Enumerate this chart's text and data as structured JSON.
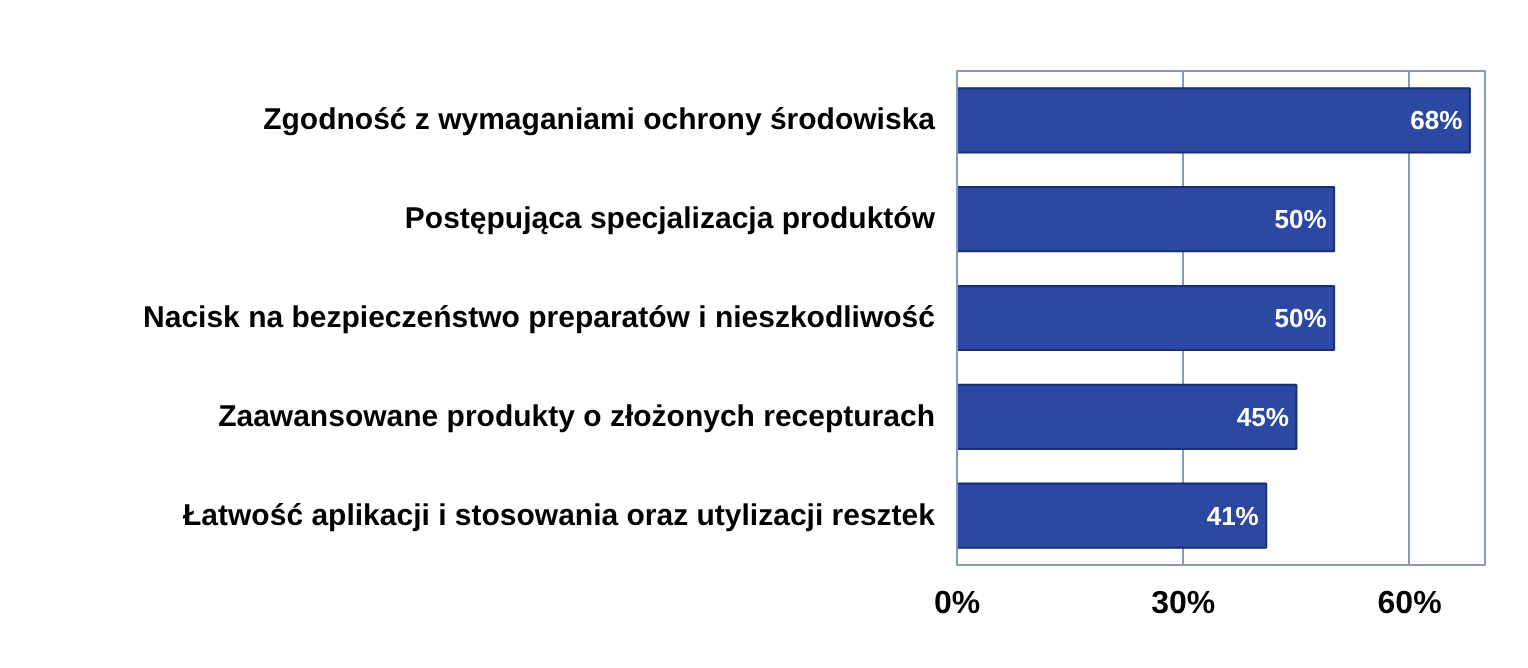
{
  "chart_data": {
    "type": "bar",
    "orientation": "horizontal",
    "categories": [
      "Zgodność z wymaganiami ochrony środowiska",
      "Postępująca specjalizacja produktów",
      "Nacisk na bezpieczeństwo preparatów i nieszkodliwość",
      "Zaawansowane produkty o złożonych recepturach",
      "Łatwość aplikacji i stosowania oraz utylizacji resztek"
    ],
    "values": [
      68,
      50,
      50,
      45,
      41
    ],
    "value_labels": [
      "68%",
      "50%",
      "50%",
      "45%",
      "41%"
    ],
    "color": "#2b48a3",
    "xlim": [
      0,
      70
    ],
    "xticks": [
      {
        "value": 0,
        "label": "0%"
      },
      {
        "value": 30,
        "label": "30%"
      },
      {
        "value": 60,
        "label": "60%"
      }
    ],
    "grid": "x"
  }
}
